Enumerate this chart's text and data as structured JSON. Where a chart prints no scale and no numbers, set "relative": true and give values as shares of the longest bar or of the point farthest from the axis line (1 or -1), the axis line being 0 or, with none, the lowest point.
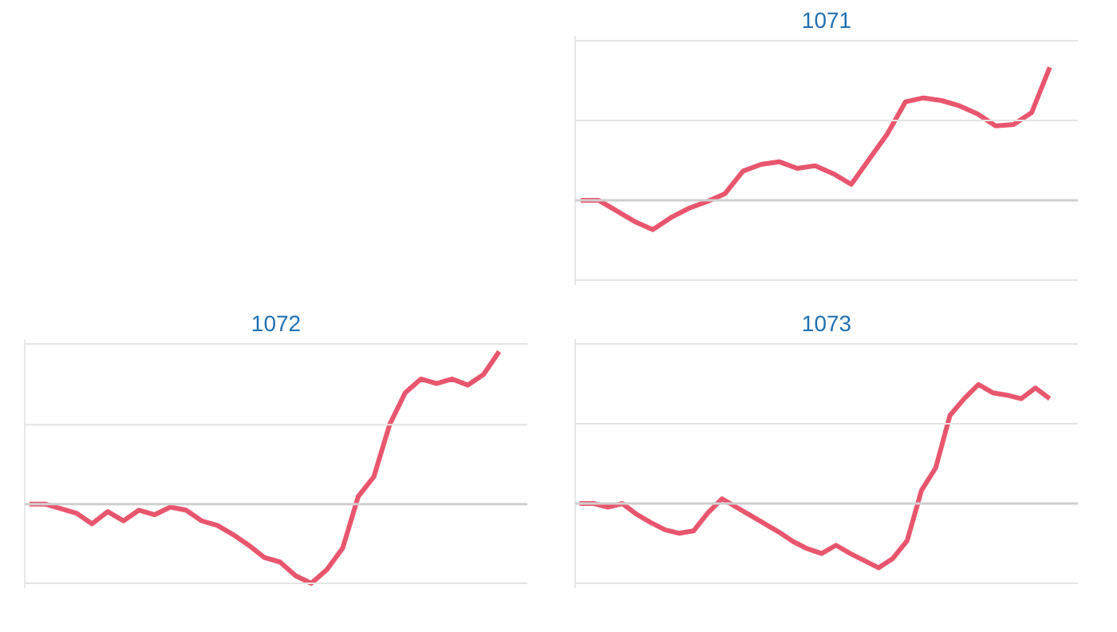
{
  "chart_data": [
    {
      "type": "line",
      "title": "1071",
      "relative": true,
      "ref_lines": [
        {
          "axis": "y",
          "value": -0.6,
          "color": "#e4e4e4"
        },
        {
          "axis": "y",
          "value": 0.6,
          "color": "#e4e4e4"
        },
        {
          "axis": "y",
          "value": 1.2,
          "color": "#e4e4e4"
        }
      ],
      "categories": [
        null,
        null,
        null,
        null,
        null,
        null,
        null,
        null,
        null,
        null,
        null,
        null,
        null,
        null,
        null,
        null,
        null,
        null,
        null,
        null,
        null,
        null,
        null,
        null,
        null,
        null,
        null
      ],
      "series": [
        {
          "color": "#e8566e",
          "values": [
            0,
            0,
            -0.08,
            -0.16,
            -0.22,
            -0.13,
            -0.06,
            -0.01,
            0.05,
            0.22,
            0.27,
            0.29,
            0.24,
            0.26,
            0.2,
            0.12,
            0.31,
            0.5,
            0.74,
            0.77,
            0.75,
            0.71,
            0.65,
            0.56,
            0.57,
            0.66,
            1
          ]
        }
      ]
    },
    {
      "type": "line",
      "title": "1072",
      "relative": true,
      "ref_lines": [
        {
          "axis": "y",
          "value": -0.52,
          "color": "#e4e4e4"
        },
        {
          "axis": "y",
          "value": 0.52,
          "color": "#e4e4e4"
        },
        {
          "axis": "y",
          "value": 1.05,
          "color": "#e4e4e4"
        }
      ],
      "categories": [
        null,
        null,
        null,
        null,
        null,
        null,
        null,
        null,
        null,
        null,
        null,
        null,
        null,
        null,
        null,
        null,
        null,
        null,
        null,
        null,
        null,
        null,
        null,
        null,
        null,
        null,
        null,
        null,
        null,
        null,
        null
      ],
      "series": [
        {
          "color": "#e8566e",
          "values": [
            0,
            0,
            -0.03,
            -0.06,
            -0.13,
            -0.05,
            -0.11,
            -0.04,
            -0.07,
            -0.02,
            -0.04,
            -0.11,
            -0.14,
            -0.2,
            -0.27,
            -0.35,
            -0.38,
            -0.47,
            -0.52,
            -0.43,
            -0.29,
            0.05,
            0.18,
            0.52,
            0.73,
            0.82,
            0.79,
            0.82,
            0.78,
            0.85,
            1
          ]
        }
      ]
    },
    {
      "type": "line",
      "title": "1073",
      "relative": true,
      "ref_lines": [
        {
          "axis": "y",
          "value": -0.67,
          "color": "#e4e4e4"
        },
        {
          "axis": "y",
          "value": 0.67,
          "color": "#e4e4e4"
        },
        {
          "axis": "y",
          "value": 1.34,
          "color": "#e4e4e4"
        }
      ],
      "categories": [
        null,
        null,
        null,
        null,
        null,
        null,
        null,
        null,
        null,
        null,
        null,
        null,
        null,
        null,
        null,
        null,
        null,
        null,
        null,
        null,
        null,
        null,
        null,
        null,
        null,
        null,
        null,
        null,
        null,
        null,
        null,
        null,
        null,
        null
      ],
      "series": [
        {
          "color": "#e8566e",
          "values": [
            0,
            0,
            -0.03,
            0,
            -0.09,
            -0.16,
            -0.22,
            -0.25,
            -0.23,
            -0.08,
            0.04,
            -0.03,
            -0.1,
            -0.17,
            -0.24,
            -0.32,
            -0.38,
            -0.42,
            -0.35,
            -0.42,
            -0.48,
            -0.54,
            -0.46,
            -0.31,
            0.11,
            0.3,
            0.74,
            0.88,
            1,
            0.93,
            0.91,
            0.88,
            0.97,
            0.88
          ]
        }
      ]
    }
  ]
}
